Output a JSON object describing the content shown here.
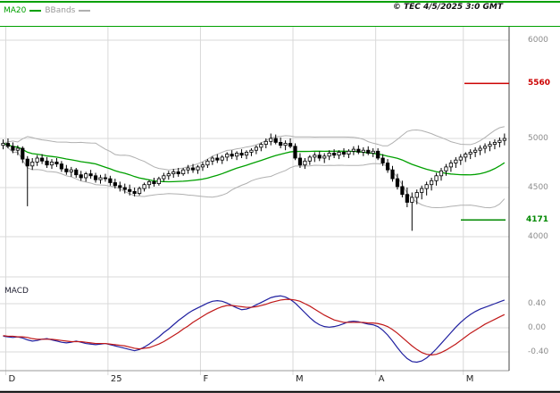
{
  "header": {
    "legend_ma20": "MA20",
    "legend_bbands": "BBands",
    "copyright": "© TEC 4/5/2025 3:0 GMT"
  },
  "macd_panel": {
    "title": "MACD"
  },
  "price_axis": {
    "labels": [
      {
        "text": "6000",
        "value": 6000
      },
      {
        "text": "5000",
        "value": 5000
      },
      {
        "text": "4500",
        "value": 4500
      },
      {
        "text": "4000",
        "value": 4000
      }
    ],
    "resistance": {
      "text": "5560",
      "value": 5560
    },
    "support": {
      "text": "4171",
      "value": 4171
    }
  },
  "macd_axis": {
    "labels": [
      {
        "text": "0.40",
        "value": 0.4
      },
      {
        "text": "0.00",
        "value": 0.0
      },
      {
        "text": "-0.40",
        "value": -0.4
      }
    ]
  },
  "time_axis": {
    "labels": [
      {
        "text": "D",
        "index": 1
      },
      {
        "text": "25",
        "index": 22
      },
      {
        "text": "F",
        "index": 41
      },
      {
        "text": "M",
        "index": 60
      },
      {
        "text": "A",
        "index": 77
      },
      {
        "text": "M",
        "index": 95
      }
    ]
  },
  "colors": {
    "ma20": "#00a000",
    "bbands": "#b0b0b0",
    "candle_up_fill": "#ffffff",
    "candle_down_fill": "#000000",
    "candle_stroke": "#000000",
    "macd_line": "#2020a0",
    "macd_signal": "#c01818",
    "resistance": "#cc0000",
    "support": "#008800",
    "grid": "#d9d9d9",
    "axis_line": "#444444",
    "axis_label": "#8c8c8c"
  },
  "chart_data": {
    "type": "candlestick",
    "title": "",
    "x_period": "daily, December through May",
    "ylim_price": [
      3590,
      6140
    ],
    "ylim_macd": [
      -0.72,
      0.73
    ],
    "ma_window": 20,
    "bollinger_k": 2,
    "ohlc": [
      [
        4930,
        4990,
        4890,
        4950
      ],
      [
        4950,
        5000,
        4900,
        4920
      ],
      [
        4920,
        4960,
        4850,
        4880
      ],
      [
        4880,
        4930,
        4830,
        4900
      ],
      [
        4900,
        4920,
        4750,
        4790
      ],
      [
        4790,
        4820,
        4310,
        4720
      ],
      [
        4720,
        4800,
        4680,
        4760
      ],
      [
        4760,
        4830,
        4720,
        4800
      ],
      [
        4800,
        4840,
        4740,
        4770
      ],
      [
        4770,
        4810,
        4700,
        4730
      ],
      [
        4730,
        4790,
        4690,
        4760
      ],
      [
        4760,
        4800,
        4710,
        4740
      ],
      [
        4740,
        4770,
        4660,
        4690
      ],
      [
        4690,
        4730,
        4630,
        4660
      ],
      [
        4660,
        4710,
        4610,
        4680
      ],
      [
        4680,
        4700,
        4600,
        4630
      ],
      [
        4630,
        4670,
        4570,
        4600
      ],
      [
        4600,
        4660,
        4560,
        4640
      ],
      [
        4640,
        4680,
        4590,
        4620
      ],
      [
        4620,
        4650,
        4550,
        4580
      ],
      [
        4580,
        4630,
        4540,
        4600
      ],
      [
        4600,
        4640,
        4560,
        4590
      ],
      [
        4590,
        4620,
        4520,
        4550
      ],
      [
        4550,
        4590,
        4490,
        4520
      ],
      [
        4520,
        4560,
        4460,
        4500
      ],
      [
        4500,
        4540,
        4440,
        4480
      ],
      [
        4480,
        4530,
        4420,
        4460
      ],
      [
        4460,
        4500,
        4410,
        4440
      ],
      [
        4440,
        4510,
        4420,
        4490
      ],
      [
        4490,
        4550,
        4460,
        4530
      ],
      [
        4530,
        4580,
        4490,
        4560
      ],
      [
        4560,
        4600,
        4510,
        4540
      ],
      [
        4540,
        4610,
        4520,
        4590
      ],
      [
        4590,
        4650,
        4560,
        4620
      ],
      [
        4620,
        4670,
        4580,
        4640
      ],
      [
        4640,
        4690,
        4600,
        4660
      ],
      [
        4660,
        4700,
        4610,
        4640
      ],
      [
        4640,
        4700,
        4620,
        4680
      ],
      [
        4680,
        4730,
        4640,
        4700
      ],
      [
        4700,
        4740,
        4650,
        4680
      ],
      [
        4680,
        4730,
        4640,
        4710
      ],
      [
        4710,
        4760,
        4670,
        4730
      ],
      [
        4730,
        4790,
        4700,
        4770
      ],
      [
        4770,
        4820,
        4730,
        4800
      ],
      [
        4800,
        4840,
        4750,
        4780
      ],
      [
        4780,
        4830,
        4740,
        4810
      ],
      [
        4810,
        4860,
        4770,
        4840
      ],
      [
        4840,
        4880,
        4790,
        4820
      ],
      [
        4820,
        4870,
        4780,
        4850
      ],
      [
        4850,
        4890,
        4800,
        4830
      ],
      [
        4830,
        4880,
        4790,
        4860
      ],
      [
        4860,
        4900,
        4820,
        4880
      ],
      [
        4880,
        4930,
        4840,
        4910
      ],
      [
        4910,
        4960,
        4870,
        4940
      ],
      [
        4940,
        5000,
        4900,
        4970
      ],
      [
        4970,
        5050,
        4930,
        5000
      ],
      [
        5000,
        5040,
        4940,
        4960
      ],
      [
        4960,
        5010,
        4900,
        4930
      ],
      [
        4930,
        4980,
        4880,
        4950
      ],
      [
        4950,
        5000,
        4900,
        4920
      ],
      [
        4920,
        4950,
        4780,
        4800
      ],
      [
        4800,
        4850,
        4700,
        4730
      ],
      [
        4730,
        4800,
        4690,
        4770
      ],
      [
        4770,
        4830,
        4730,
        4810
      ],
      [
        4810,
        4860,
        4760,
        4830
      ],
      [
        4830,
        4870,
        4770,
        4800
      ],
      [
        4800,
        4850,
        4750,
        4820
      ],
      [
        4820,
        4880,
        4780,
        4850
      ],
      [
        4850,
        4890,
        4800,
        4830
      ],
      [
        4830,
        4880,
        4790,
        4860
      ],
      [
        4860,
        4900,
        4810,
        4840
      ],
      [
        4840,
        4890,
        4800,
        4870
      ],
      [
        4870,
        4920,
        4830,
        4890
      ],
      [
        4890,
        4930,
        4840,
        4860
      ],
      [
        4860,
        4910,
        4820,
        4880
      ],
      [
        4880,
        4920,
        4830,
        4850
      ],
      [
        4850,
        4900,
        4810,
        4870
      ],
      [
        4870,
        4900,
        4780,
        4800
      ],
      [
        4800,
        4840,
        4720,
        4750
      ],
      [
        4750,
        4790,
        4650,
        4680
      ],
      [
        4680,
        4720,
        4560,
        4590
      ],
      [
        4590,
        4640,
        4480,
        4510
      ],
      [
        4510,
        4570,
        4400,
        4430
      ],
      [
        4430,
        4500,
        4300,
        4350
      ],
      [
        4350,
        4450,
        4060,
        4400
      ],
      [
        4400,
        4480,
        4330,
        4450
      ],
      [
        4450,
        4520,
        4380,
        4490
      ],
      [
        4490,
        4560,
        4420,
        4530
      ],
      [
        4530,
        4600,
        4470,
        4570
      ],
      [
        4570,
        4650,
        4520,
        4620
      ],
      [
        4620,
        4700,
        4570,
        4670
      ],
      [
        4670,
        4740,
        4620,
        4710
      ],
      [
        4710,
        4780,
        4660,
        4750
      ],
      [
        4750,
        4810,
        4700,
        4780
      ],
      [
        4780,
        4840,
        4730,
        4810
      ],
      [
        4810,
        4860,
        4760,
        4840
      ],
      [
        4840,
        4890,
        4790,
        4860
      ],
      [
        4860,
        4910,
        4810,
        4880
      ],
      [
        4880,
        4930,
        4830,
        4900
      ],
      [
        4900,
        4950,
        4850,
        4920
      ],
      [
        4920,
        4970,
        4870,
        4940
      ],
      [
        4940,
        4990,
        4890,
        4960
      ],
      [
        4960,
        5010,
        4910,
        4980
      ],
      [
        4980,
        5050,
        4930,
        5000
      ]
    ],
    "macd": [
      -0.14,
      -0.15,
      -0.16,
      -0.15,
      -0.17,
      -0.2,
      -0.22,
      -0.21,
      -0.19,
      -0.18,
      -0.2,
      -0.22,
      -0.24,
      -0.25,
      -0.24,
      -0.22,
      -0.24,
      -0.26,
      -0.27,
      -0.28,
      -0.27,
      -0.26,
      -0.28,
      -0.3,
      -0.32,
      -0.34,
      -0.36,
      -0.38,
      -0.36,
      -0.32,
      -0.27,
      -0.21,
      -0.15,
      -0.08,
      -0.02,
      0.05,
      0.12,
      0.18,
      0.24,
      0.29,
      0.33,
      0.37,
      0.41,
      0.44,
      0.45,
      0.44,
      0.41,
      0.37,
      0.33,
      0.3,
      0.31,
      0.34,
      0.38,
      0.42,
      0.46,
      0.5,
      0.52,
      0.53,
      0.51,
      0.47,
      0.41,
      0.33,
      0.25,
      0.17,
      0.1,
      0.05,
      0.02,
      0.01,
      0.02,
      0.04,
      0.07,
      0.1,
      0.11,
      0.1,
      0.08,
      0.06,
      0.05,
      0.02,
      -0.04,
      -0.12,
      -0.22,
      -0.33,
      -0.43,
      -0.51,
      -0.56,
      -0.57,
      -0.55,
      -0.5,
      -0.43,
      -0.35,
      -0.26,
      -0.17,
      -0.08,
      0.01,
      0.09,
      0.16,
      0.22,
      0.27,
      0.31,
      0.34,
      0.37,
      0.4,
      0.43,
      0.46
    ],
    "macd_signal": [
      -0.13,
      -0.14,
      -0.14,
      -0.15,
      -0.15,
      -0.16,
      -0.18,
      -0.19,
      -0.19,
      -0.19,
      -0.19,
      -0.2,
      -0.21,
      -0.22,
      -0.23,
      -0.23,
      -0.23,
      -0.24,
      -0.25,
      -0.26,
      -0.26,
      -0.26,
      -0.27,
      -0.28,
      -0.29,
      -0.3,
      -0.32,
      -0.34,
      -0.35,
      -0.34,
      -0.33,
      -0.3,
      -0.27,
      -0.23,
      -0.18,
      -0.13,
      -0.08,
      -0.02,
      0.03,
      0.09,
      0.14,
      0.19,
      0.24,
      0.28,
      0.32,
      0.35,
      0.37,
      0.37,
      0.36,
      0.35,
      0.34,
      0.34,
      0.35,
      0.37,
      0.39,
      0.42,
      0.44,
      0.46,
      0.47,
      0.47,
      0.46,
      0.44,
      0.4,
      0.36,
      0.31,
      0.26,
      0.21,
      0.17,
      0.13,
      0.11,
      0.09,
      0.09,
      0.09,
      0.09,
      0.09,
      0.08,
      0.08,
      0.07,
      0.05,
      0.02,
      -0.03,
      -0.09,
      -0.16,
      -0.23,
      -0.3,
      -0.36,
      -0.41,
      -0.44,
      -0.45,
      -0.44,
      -0.41,
      -0.37,
      -0.32,
      -0.27,
      -0.21,
      -0.15,
      -0.09,
      -0.04,
      0.01,
      0.06,
      0.1,
      0.14,
      0.18,
      0.22
    ]
  }
}
